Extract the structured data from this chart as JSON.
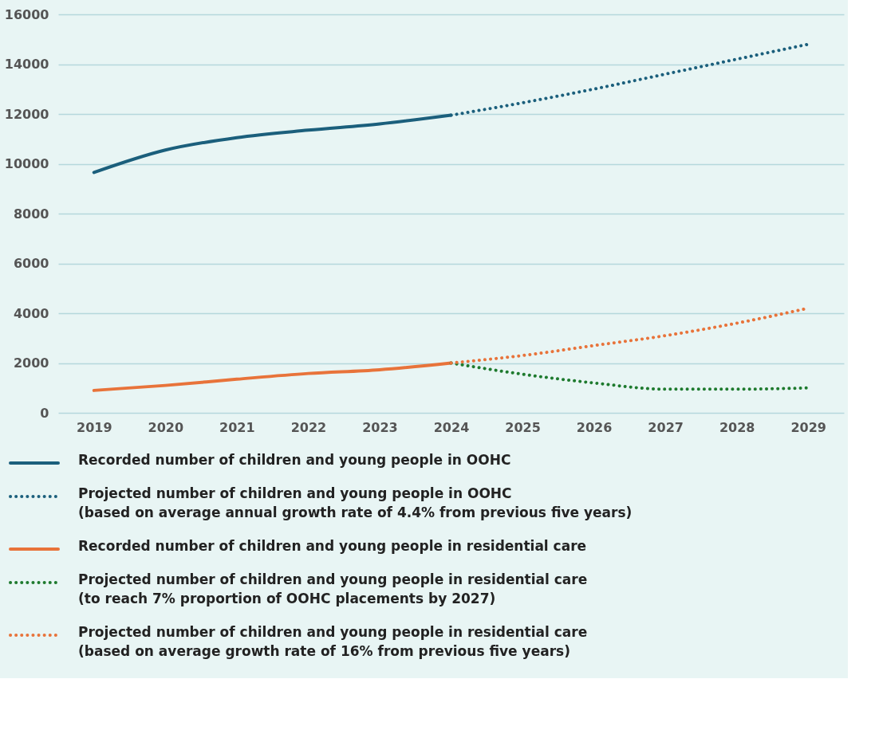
{
  "chart_data": {
    "type": "line",
    "xlim": [
      2018.5,
      2029.5
    ],
    "xticks": [
      2019,
      2020,
      2021,
      2022,
      2023,
      2024,
      2025,
      2026,
      2027,
      2028,
      2029
    ],
    "ylim": [
      0,
      16000
    ],
    "yticks": [
      0,
      2000,
      4000,
      6000,
      8000,
      10000,
      12000,
      14000,
      16000
    ],
    "grid": "y",
    "legend": "bottom",
    "series": [
      {
        "name": "Recorded number of children and young people in OOHC",
        "color": "#1b5f7c",
        "line_style": "solid",
        "x": [
          2019,
          2020,
          2021,
          2022,
          2023,
          2024
        ],
        "values": [
          9650,
          10550,
          11050,
          11350,
          11600,
          11950
        ]
      },
      {
        "name": "Projected number of children and young people in OOHC\n(based on average annual growth rate of 4.4% from previous five years)",
        "color": "#1b5f7c",
        "line_style": "dotted",
        "x": [
          2024,
          2025,
          2026,
          2027,
          2028,
          2029
        ],
        "values": [
          11950,
          12450,
          13000,
          13600,
          14200,
          14800
        ]
      },
      {
        "name": "Recorded number of children and young people in residential care",
        "color": "#e8733a",
        "line_style": "solid",
        "x": [
          2019,
          2020,
          2021,
          2022,
          2023,
          2024
        ],
        "values": [
          900,
          1100,
          1350,
          1580,
          1730,
          2000
        ]
      },
      {
        "name": "Projected number of children and young people in residential care\n(to reach 7% proportion of OOHC placements by 2027)",
        "color": "#1e7a2e",
        "line_style": "dotted",
        "x": [
          2024,
          2025,
          2026,
          2027,
          2028,
          2029
        ],
        "values": [
          2000,
          1550,
          1200,
          950,
          950,
          1000
        ]
      },
      {
        "name": "Projected number of children and young people in residential care\n(based on average growth rate of 16% from previous five years)",
        "color": "#e8733a",
        "line_style": "dotted",
        "x": [
          2024,
          2025,
          2026,
          2027,
          2028,
          2029
        ],
        "values": [
          2000,
          2300,
          2700,
          3100,
          3600,
          4200
        ]
      }
    ]
  }
}
